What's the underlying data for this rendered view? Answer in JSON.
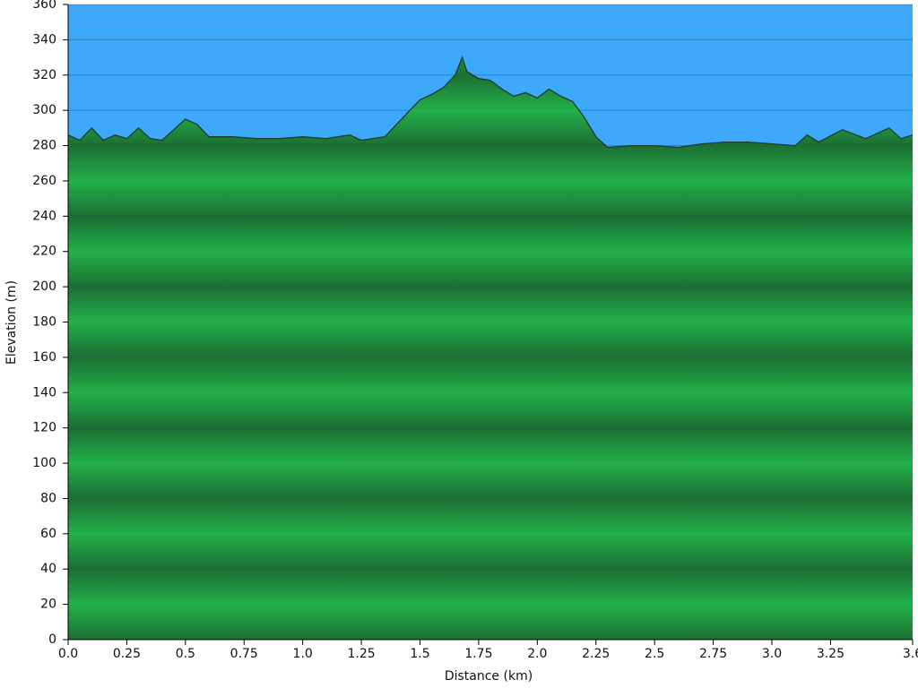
{
  "chart_data": {
    "type": "area",
    "x_label": "Distance   (km)",
    "y_label": "Elevation (m)",
    "x": [
      0.0,
      0.05,
      0.1,
      0.15,
      0.2,
      0.25,
      0.3,
      0.35,
      0.4,
      0.45,
      0.5,
      0.55,
      0.6,
      0.7,
      0.8,
      0.9,
      1.0,
      1.1,
      1.2,
      1.25,
      1.35,
      1.4,
      1.45,
      1.5,
      1.55,
      1.6,
      1.65,
      1.68,
      1.7,
      1.75,
      1.8,
      1.85,
      1.9,
      1.95,
      2.0,
      2.05,
      2.1,
      2.15,
      2.2,
      2.25,
      2.3,
      2.4,
      2.5,
      2.6,
      2.7,
      2.8,
      2.9,
      3.0,
      3.1,
      3.15,
      3.2,
      3.3,
      3.4,
      3.5,
      3.55,
      3.6
    ],
    "values": [
      286,
      283,
      290,
      283,
      286,
      284,
      290,
      284,
      283,
      289,
      295,
      292,
      285,
      285,
      284,
      284,
      285,
      284,
      286,
      283,
      285,
      292,
      299,
      306,
      309,
      313,
      320,
      330,
      322,
      318,
      317,
      312,
      308,
      310,
      307,
      312,
      308,
      305,
      296,
      285,
      279,
      280,
      280,
      279,
      281,
      282,
      282,
      281,
      280,
      286,
      282,
      289,
      284,
      290,
      284,
      286
    ],
    "xlim": [
      0,
      3.6
    ],
    "ylim": [
      0,
      360
    ],
    "xticks": [
      {
        "value": 0,
        "label": "0.0"
      },
      0.25,
      0.5,
      0.75,
      {
        "value": 1,
        "label": "1.0"
      },
      1.25,
      1.5,
      1.75,
      {
        "value": 2,
        "label": "2.0"
      },
      2.25,
      2.5,
      2.75,
      {
        "value": 3,
        "label": "3.0"
      },
      3.25,
      3.6
    ],
    "yticks": [
      0,
      20,
      40,
      60,
      80,
      100,
      120,
      140,
      160,
      180,
      200,
      220,
      240,
      260,
      280,
      300,
      320,
      340,
      360
    ],
    "grid": true,
    "background_color": "#3ea8fb",
    "fill_color": "#22b04a",
    "stripe_color": "#1c6e33",
    "line_color": "#203a2a"
  }
}
